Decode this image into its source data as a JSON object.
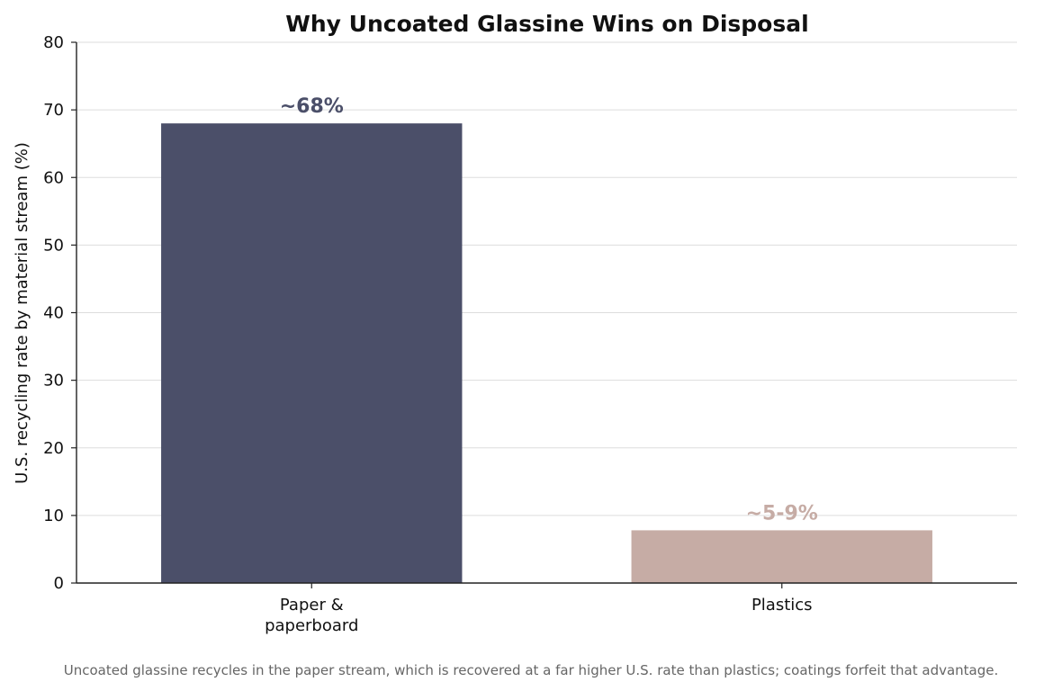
{
  "chart_data": {
    "type": "bar",
    "title": "Why Uncoated Glassine Wins on Disposal",
    "xlabel": "",
    "ylabel": "U.S. recycling rate by material stream (%)",
    "categories": [
      [
        "Paper &",
        "paperboard"
      ],
      [
        "Plastics"
      ]
    ],
    "values": [
      68,
      7.8
    ],
    "data_labels": [
      "~68%",
      "~5-9%"
    ],
    "colors": [
      "#4b4f69",
      "#c6aca5"
    ],
    "ylim": [
      0,
      80
    ],
    "yticks": [
      0,
      10,
      20,
      30,
      40,
      50,
      60,
      70,
      80
    ],
    "grid": "horizontal",
    "legend": "none"
  },
  "caption": "Uncoated glassine recycles in the paper stream, which is recovered at a far higher U.S. rate than plastics; coatings forfeit that advantage."
}
